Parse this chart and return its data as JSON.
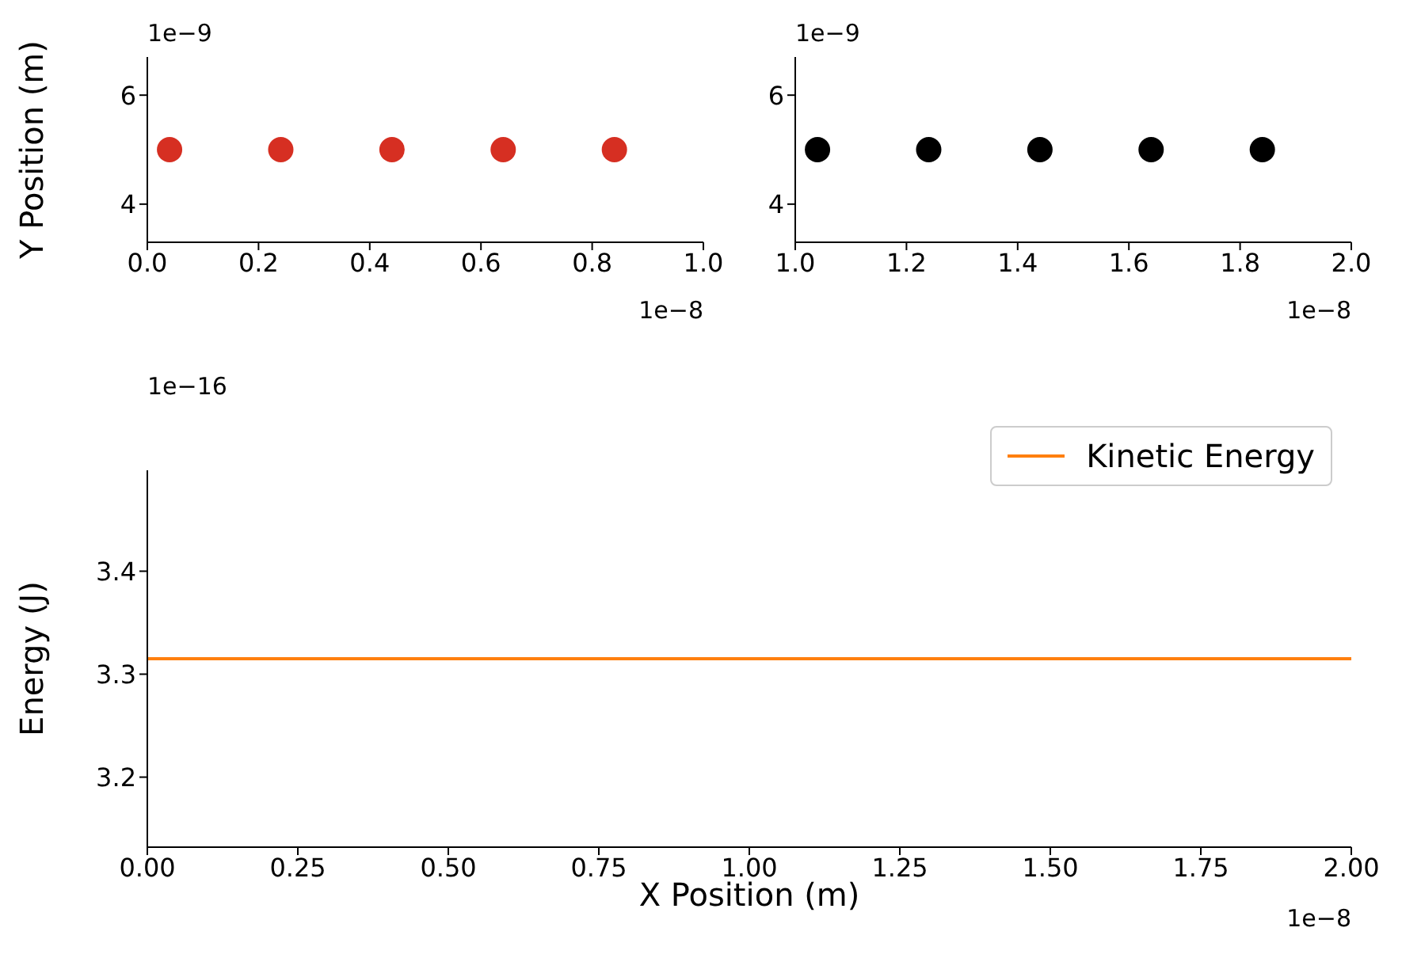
{
  "chart_data": [
    {
      "type": "scatter",
      "ylabel": "Y Position (m)",
      "annotations": [
        "1e−9",
        "1e−8"
      ],
      "x": [
        0.04,
        0.24,
        0.44,
        0.64,
        0.84
      ],
      "values": [
        5,
        5,
        5,
        5,
        5
      ],
      "color": "#d62f22",
      "marker": "circle",
      "xlim": [
        0,
        1
      ],
      "xticks": [
        {
          "value": 0,
          "label": "0.0"
        },
        0.2,
        0.4,
        0.6,
        0.8,
        {
          "value": 1,
          "label": "1.0"
        }
      ],
      "ylim": [
        3.3,
        6.7
      ],
      "yticks": [
        4,
        6
      ],
      "grid": false,
      "legend": false
    },
    {
      "type": "scatter",
      "annotations": [
        "1e−9",
        "1e−8"
      ],
      "x": [
        1.04,
        1.24,
        1.44,
        1.64,
        1.84
      ],
      "values": [
        5,
        5,
        5,
        5,
        5
      ],
      "color": "#000000",
      "marker": "circle",
      "xlim": [
        1,
        2
      ],
      "xticks": [
        {
          "value": 1,
          "label": "1.0"
        },
        1.2,
        1.4,
        1.6,
        1.8,
        {
          "value": 2,
          "label": "2.0"
        }
      ],
      "ylim": [
        3.3,
        6.7
      ],
      "yticks": [
        4,
        6
      ],
      "grid": false,
      "legend": false
    },
    {
      "type": "line",
      "xlabel": "X Position (m)",
      "ylabel": "Energy (J)",
      "annotations": [
        "1e−16",
        "1e−8"
      ],
      "series": [
        {
          "name": "Kinetic Energy",
          "color": "#ff7f0e",
          "x": [
            0,
            2
          ],
          "values": [
            3.315,
            3.315
          ]
        }
      ],
      "marker": "none",
      "line_style": "solid",
      "xlim": [
        0,
        2
      ],
      "xticks": [
        {
          "value": 0,
          "label": "0.00"
        },
        0.25,
        {
          "value": 0.5,
          "label": "0.50"
        },
        0.75,
        {
          "value": 1,
          "label": "1.00"
        },
        1.25,
        {
          "value": 1.5,
          "label": "1.50"
        },
        1.75,
        {
          "value": 2,
          "label": "2.00"
        }
      ],
      "ylim": [
        3.132,
        3.498
      ],
      "yticks": [
        3.2,
        3.3,
        3.4
      ],
      "grid": false,
      "legend": "top right"
    }
  ]
}
